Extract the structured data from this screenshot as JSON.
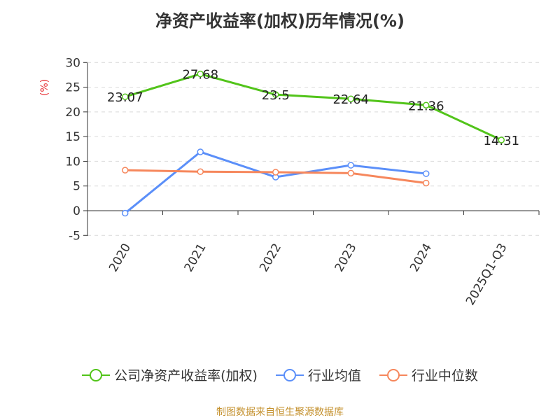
{
  "chart_data": {
    "type": "line",
    "title": "净资产收益率(加权)历年情况(%)",
    "ylabel": "(%)",
    "categories": [
      "2020",
      "2021",
      "2022",
      "2023",
      "2024",
      "2025Q1-Q3"
    ],
    "ylim": [
      -5,
      30
    ],
    "yticks": [
      30,
      25,
      20,
      15,
      10,
      5,
      0,
      -5
    ],
    "grid": true,
    "legend_position": "bottom",
    "series": [
      {
        "name": "公司净资产收益率(加权)",
        "color": "#52c41a",
        "values": [
          23.07,
          27.68,
          23.5,
          22.64,
          21.36,
          14.31
        ],
        "show_labels": true
      },
      {
        "name": "行业均值",
        "color": "#5b8ff9",
        "values": [
          -0.5,
          11.9,
          6.8,
          9.2,
          7.5,
          null
        ],
        "show_labels": false
      },
      {
        "name": "行业中位数",
        "color": "#f6875c",
        "values": [
          8.2,
          7.9,
          7.8,
          7.6,
          5.6,
          null
        ],
        "show_labels": false
      }
    ]
  },
  "colors": {
    "ylabel": "#e8363a",
    "footer": "#c4912e",
    "grid": "#d9d9d9",
    "axis": "#333333"
  },
  "footer": "制图数据来自恒生聚源数据库"
}
